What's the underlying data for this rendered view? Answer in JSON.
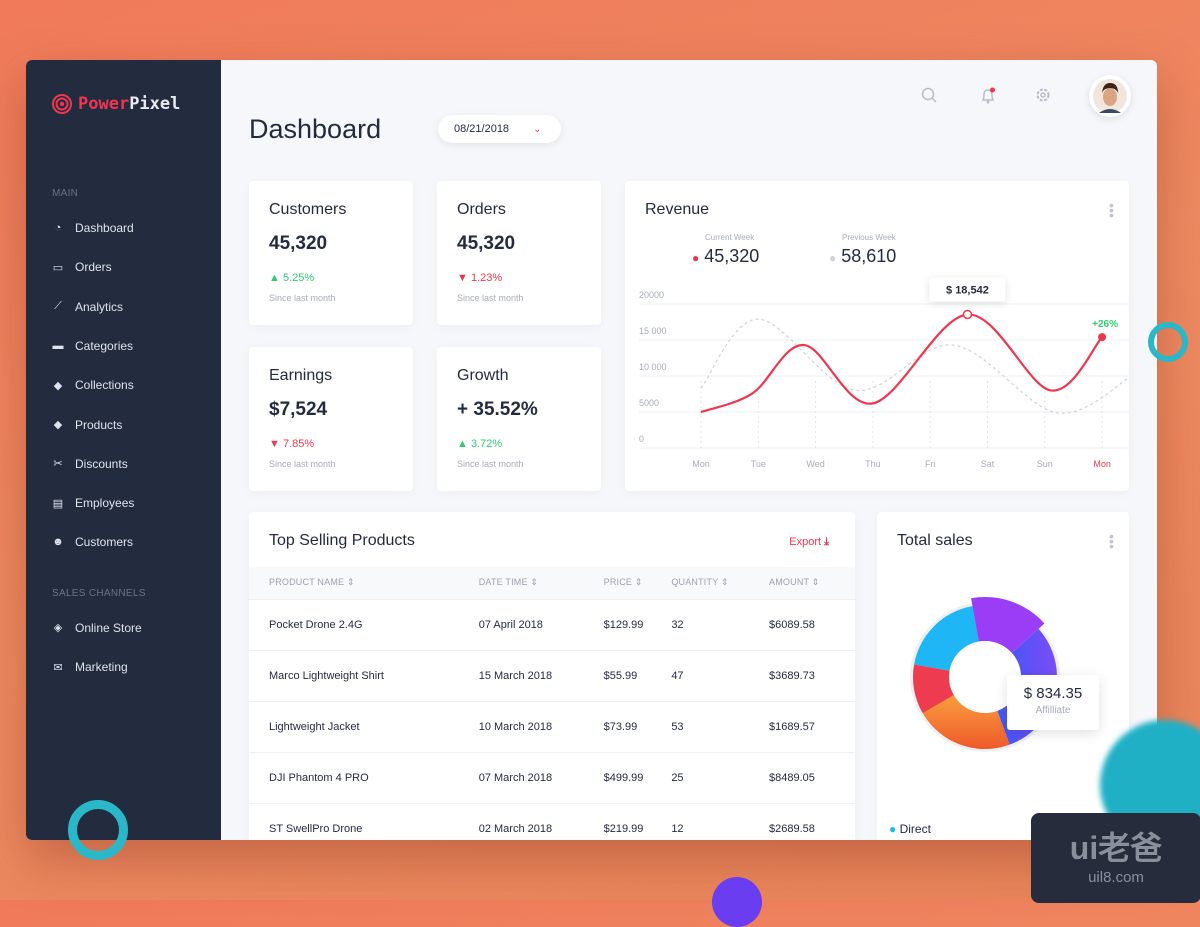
{
  "brand": {
    "name_part1": "Power",
    "name_part2": "Pixel"
  },
  "sidebar": {
    "sections": [
      {
        "label": "MAIN",
        "items": [
          {
            "label": "Dashboard",
            "icon": "dashboard-icon"
          },
          {
            "label": "Orders",
            "icon": "inbox-icon"
          },
          {
            "label": "Analytics",
            "icon": "line-chart-icon"
          },
          {
            "label": "Categories",
            "icon": "archive-icon"
          },
          {
            "label": "Collections",
            "icon": "tags-icon"
          },
          {
            "label": "Products",
            "icon": "tag-icon"
          },
          {
            "label": "Discounts",
            "icon": "scissors-icon"
          },
          {
            "label": "Employees",
            "icon": "briefcase-icon"
          },
          {
            "label": "Customers",
            "icon": "users-icon"
          }
        ]
      },
      {
        "label": "SALES CHANNELS",
        "items": [
          {
            "label": "Online Store",
            "icon": "codepen-icon"
          },
          {
            "label": "Marketing",
            "icon": "envelope-icon"
          }
        ]
      }
    ]
  },
  "header": {
    "title": "Dashboard",
    "date": "08/21/2018"
  },
  "stats": [
    {
      "label": "Customers",
      "value": "45,320",
      "change": "5.25%",
      "direction": "up",
      "since": "Since last month"
    },
    {
      "label": "Orders",
      "value": "45,320",
      "change": "1.23%",
      "direction": "down",
      "since": "Since last month"
    },
    {
      "label": "Earnings",
      "value": "$7,524",
      "change": "7.85%",
      "direction": "down",
      "since": "Since last month"
    },
    {
      "label": "Growth",
      "value": "+ 35.52%",
      "change": "3.72%",
      "direction": "up",
      "since": "Since last month"
    }
  ],
  "revenue": {
    "title": "Revenue",
    "current_label": "Current Week",
    "current_value": "45,320",
    "previous_label": "Previous Week",
    "previous_value": "58,610",
    "tooltip": "$ 18,542",
    "badge": "+26%",
    "chart_data": {
      "type": "line",
      "x_labels": [
        "Mon",
        "Tue",
        "Wed",
        "Thu",
        "Fri",
        "Sat",
        "Sun",
        "Mon"
      ],
      "y_ticks": [
        "20000",
        "15 000",
        "10 000",
        "5000",
        "0"
      ],
      "ylim": [
        0,
        20000
      ],
      "grid": true,
      "series": [
        {
          "name": "Current Week",
          "color": "#f0364f",
          "points": [
            [
              0,
              5000
            ],
            [
              0.9,
              7600
            ],
            [
              1.8,
              14300
            ],
            [
              3.0,
              6200
            ],
            [
              4.65,
              18542
            ],
            [
              6.1,
              8000
            ],
            [
              7,
              15400
            ]
          ]
        },
        {
          "name": "Previous Week",
          "color": "#cfd3da",
          "dashed": true,
          "points": [
            [
              0,
              8300
            ],
            [
              1.0,
              17900
            ],
            [
              2.7,
              8000
            ],
            [
              4.4,
              14300
            ],
            [
              6.2,
              4900
            ],
            [
              7.5,
              9900
            ]
          ]
        }
      ]
    }
  },
  "products": {
    "title": "Top Selling Products",
    "export": "Export",
    "columns": [
      "PRODUCT NAME",
      "DATE TIME",
      "PRICE",
      "QUANTITY",
      "AMOUNT"
    ],
    "rows": [
      [
        "Pocket Drone 2.4G",
        "07 April 2018",
        "$129.99",
        "32",
        "$6089.58"
      ],
      [
        "Marco Lightweight Shirt",
        "15 March 2018",
        "$55.99",
        "47",
        "$3689.73"
      ],
      [
        "Lightweight Jacket",
        "10 March 2018",
        "$73.99",
        "53",
        "$1689.57"
      ],
      [
        "DJI Phantom 4 PRO",
        "07 March 2018",
        "$499.99",
        "25",
        "$8489.05"
      ],
      [
        "ST SwellPro Drone",
        "02 March 2018",
        "$219.99",
        "12",
        "$2689.58"
      ]
    ]
  },
  "sales": {
    "title": "Total sales",
    "tooltip_value": "$ 834.35",
    "tooltip_label": "Affilliate",
    "legend": [
      {
        "label": "Direct",
        "color": "#1fb6f5"
      }
    ]
  },
  "watermark": {
    "text": "ui老爸",
    "url": "uil8.com"
  }
}
